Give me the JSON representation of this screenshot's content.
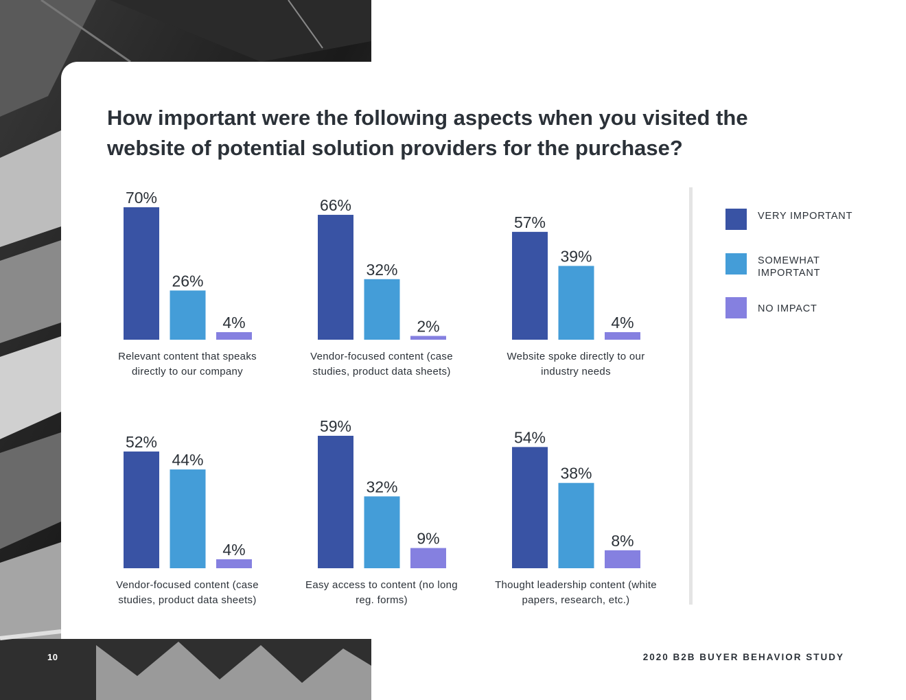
{
  "title": "How important were the following aspects when you visited the website of potential solution providers for the purchase?",
  "page_number": "10",
  "footer_title": "2020 B2B BUYER BEHAVIOR STUDY",
  "colors": {
    "very_important": "#3953a4",
    "somewhat_important": "#449dd8",
    "no_impact": "#8580e0",
    "text": "#2b3138"
  },
  "legend": [
    {
      "label": "VERY IMPORTANT",
      "color": "#3953a4"
    },
    {
      "label": "SOMEWHAT IMPORTANT",
      "color": "#449dd8"
    },
    {
      "label": "NO IMPACT",
      "color": "#8580e0"
    }
  ],
  "chart_data": [
    {
      "type": "bar",
      "title": "Relevant content that speaks directly to our company",
      "categories": [
        "VERY IMPORTANT",
        "SOMEWHAT IMPORTANT",
        "NO IMPACT"
      ],
      "values": [
        70,
        26,
        4
      ],
      "labels": [
        "70%",
        "26%",
        "4%"
      ],
      "ylim": [
        0,
        70
      ],
      "grid": false
    },
    {
      "type": "bar",
      "title": "Vendor-focused content (case studies, product data sheets)",
      "categories": [
        "VERY IMPORTANT",
        "SOMEWHAT IMPORTANT",
        "NO IMPACT"
      ],
      "values": [
        66,
        32,
        2
      ],
      "labels": [
        "66%",
        "32%",
        "2%"
      ],
      "ylim": [
        0,
        70
      ],
      "grid": false
    },
    {
      "type": "bar",
      "title": "Website spoke directly to our industry needs",
      "categories": [
        "VERY IMPORTANT",
        "SOMEWHAT IMPORTANT",
        "NO IMPACT"
      ],
      "values": [
        57,
        39,
        4
      ],
      "labels": [
        "57%",
        "39%",
        "4%"
      ],
      "ylim": [
        0,
        70
      ],
      "grid": false
    },
    {
      "type": "bar",
      "title": "Vendor-focused content (case studies, product data sheets)",
      "categories": [
        "VERY IMPORTANT",
        "SOMEWHAT IMPORTANT",
        "NO IMPACT"
      ],
      "values": [
        52,
        44,
        4
      ],
      "labels": [
        "52%",
        "44%",
        "4%"
      ],
      "ylim": [
        0,
        59
      ],
      "grid": false
    },
    {
      "type": "bar",
      "title": "Easy access to content (no long reg. forms)",
      "categories": [
        "VERY IMPORTANT",
        "SOMEWHAT IMPORTANT",
        "NO IMPACT"
      ],
      "values": [
        59,
        32,
        9
      ],
      "labels": [
        "59%",
        "32%",
        "9%"
      ],
      "ylim": [
        0,
        59
      ],
      "grid": false
    },
    {
      "type": "bar",
      "title": "Thought leadership content (white papers, research, etc.)",
      "categories": [
        "VERY IMPORTANT",
        "SOMEWHAT IMPORTANT",
        "NO IMPACT"
      ],
      "values": [
        54,
        38,
        8
      ],
      "labels": [
        "54%",
        "38%",
        "8%"
      ],
      "ylim": [
        0,
        59
      ],
      "grid": false
    }
  ]
}
